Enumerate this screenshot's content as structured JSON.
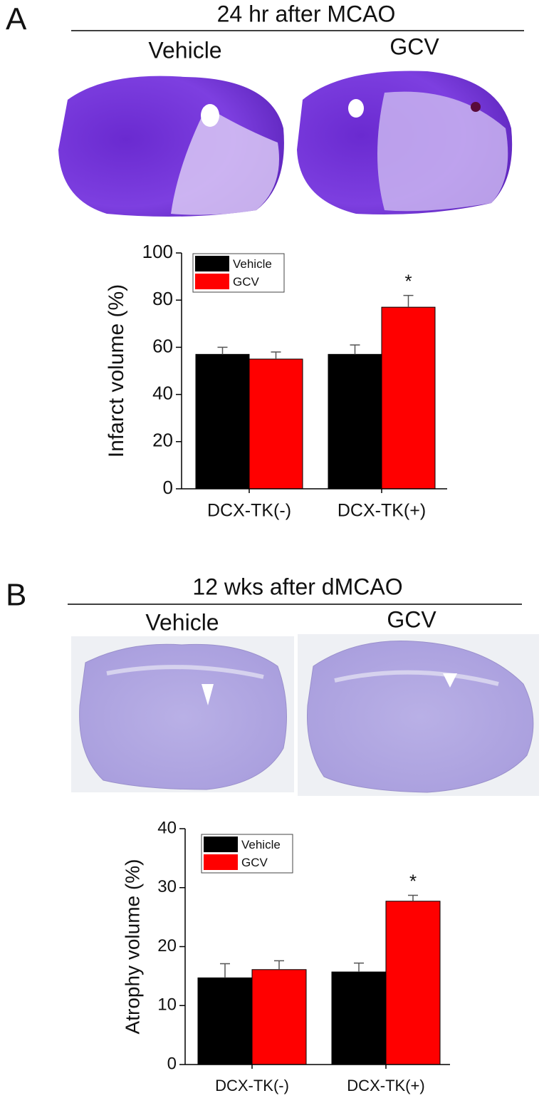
{
  "chart_data": [
    {
      "type": "bar",
      "panel_label": "A",
      "title": "24 hr after MCAO",
      "image_labels": [
        "Vehicle",
        "GCV"
      ],
      "y_label": "Infarct volume (%)",
      "categories": [
        "DCX-TK(-)",
        "DCX-TK(+)"
      ],
      "series": [
        {
          "name": "Vehicle",
          "color": "#000000",
          "values": [
            57,
            57
          ],
          "errors": [
            3,
            4
          ]
        },
        {
          "name": "GCV",
          "color": "#ff0000",
          "values": [
            55,
            77
          ],
          "errors": [
            3,
            5
          ]
        }
      ],
      "annotations": [
        {
          "text": "*",
          "category": "DCX-TK(+)",
          "series": "GCV"
        }
      ],
      "ylim": [
        0,
        100
      ],
      "yticks": [
        0,
        20,
        40,
        60,
        80,
        100
      ],
      "legend": "upper-left"
    },
    {
      "type": "bar",
      "panel_label": "B",
      "title": "12 wks after dMCAO",
      "image_labels": [
        "Vehicle",
        "GCV"
      ],
      "y_label": "Atrophy volume (%)",
      "categories": [
        "DCX-TK(-)",
        "DCX-TK(+)"
      ],
      "series": [
        {
          "name": "Vehicle",
          "color": "#000000",
          "values": [
            14.7,
            15.7
          ],
          "errors": [
            2.4,
            1.5
          ]
        },
        {
          "name": "GCV",
          "color": "#ff0000",
          "values": [
            16.1,
            27.7
          ],
          "errors": [
            1.5,
            1.0
          ]
        }
      ],
      "annotations": [
        {
          "text": "*",
          "category": "DCX-TK(+)",
          "series": "GCV"
        }
      ],
      "ylim": [
        0,
        40
      ],
      "yticks": [
        0,
        10,
        20,
        30,
        40
      ],
      "legend": "upper-left"
    }
  ]
}
